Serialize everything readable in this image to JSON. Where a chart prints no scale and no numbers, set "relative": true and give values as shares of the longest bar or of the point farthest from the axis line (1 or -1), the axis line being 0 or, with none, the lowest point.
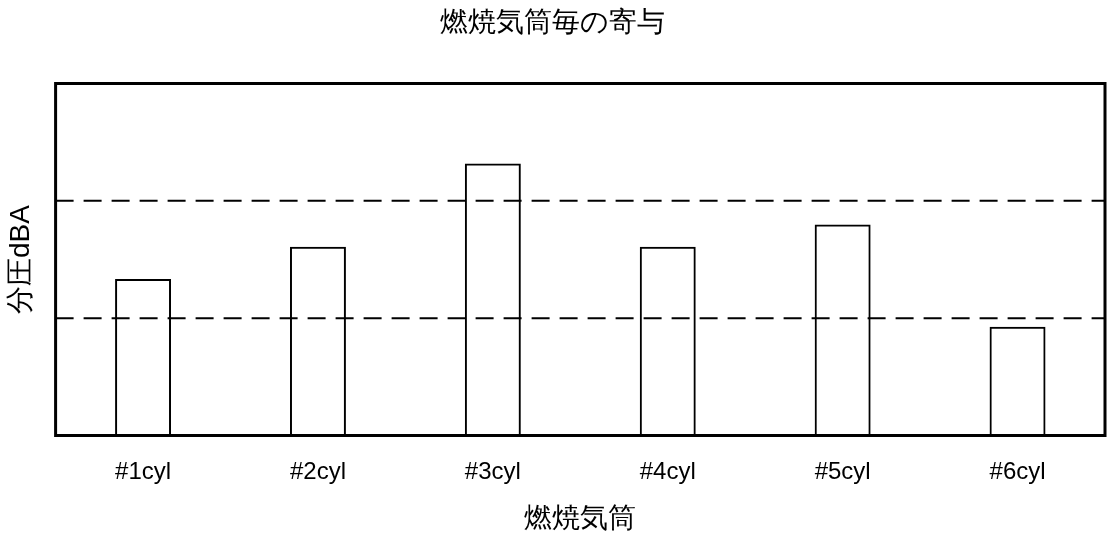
{
  "chart_data": {
    "type": "bar",
    "title": "燃焼気筒毎の寄与",
    "xlabel": "燃焼気筒",
    "ylabel": "分圧dBA",
    "categories": [
      "#1cyl",
      "#2cyl",
      "#3cyl",
      "#4cyl",
      "#5cyl",
      "#6cyl"
    ],
    "values": [
      0.576,
      0.694,
      1,
      0.694,
      0.776,
      0.4
    ],
    "color": "#000000",
    "relative": true,
    "legend": false,
    "ref_lines": [
      {
        "axis": "y",
        "value": 0.863,
        "line_style": "dashed",
        "color": "#000000"
      },
      {
        "axis": "y",
        "value": 0.431,
        "line_style": "dashed",
        "color": "#000000"
      }
    ]
  }
}
